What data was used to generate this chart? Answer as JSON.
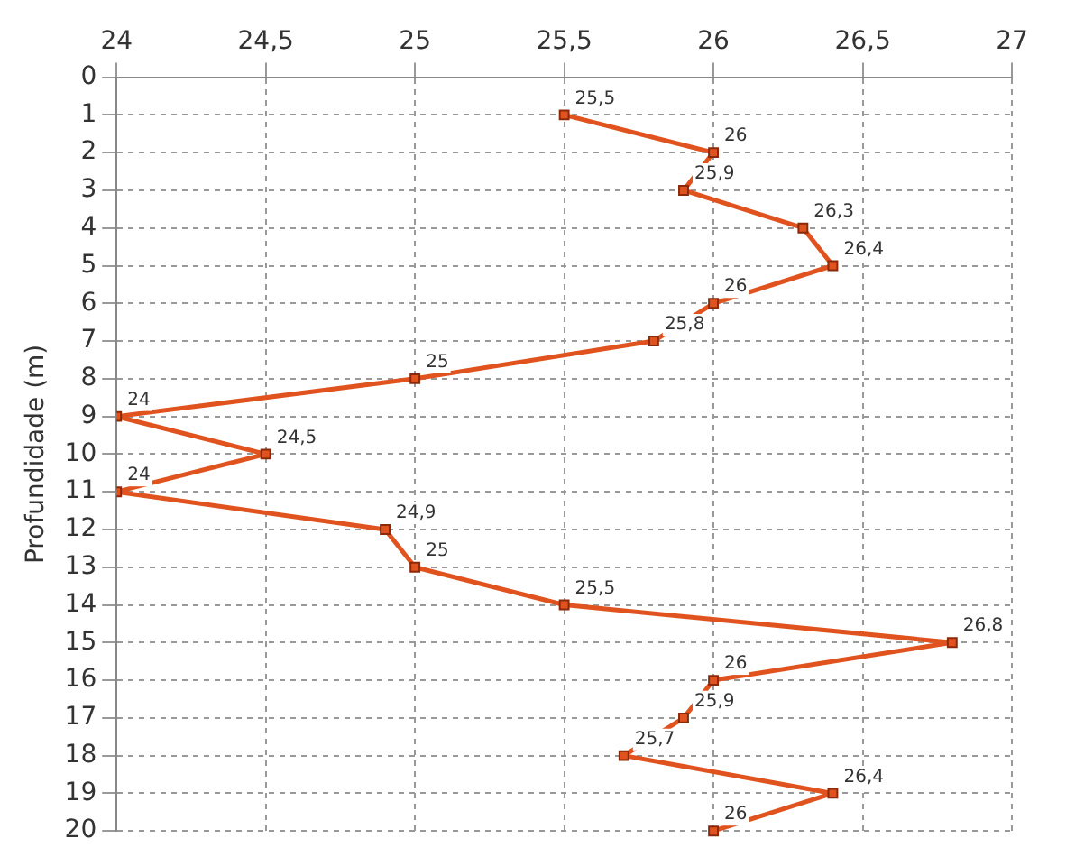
{
  "chart_data": {
    "type": "line",
    "orientation": "horizontal",
    "ylabel": "Profundidade (m)",
    "categories": [
      "0",
      "1",
      "2",
      "3",
      "4",
      "5",
      "6",
      "7",
      "8",
      "9",
      "10",
      "11",
      "12",
      "13",
      "14",
      "15",
      "16",
      "17",
      "18",
      "19",
      "20"
    ],
    "series": [
      {
        "color": "#e0531f",
        "values": [
          null,
          25.5,
          26,
          25.9,
          26.3,
          26.4,
          26,
          25.8,
          25,
          24,
          24.5,
          24,
          24.9,
          25,
          25.5,
          26.8,
          26,
          25.9,
          25.7,
          26.4,
          26
        ],
        "value_labels": [
          null,
          "25,5",
          "26",
          "25,9",
          "26,3",
          "26,4",
          "26",
          "25,8",
          "25",
          "24",
          "24,5",
          "24",
          "24,9",
          "25",
          "25,5",
          "26,8",
          "26",
          "25,9",
          "25,7",
          "26,4",
          "26"
        ]
      }
    ],
    "xlim": [
      24,
      27
    ],
    "xticks": [
      24,
      {
        "value": 24.5,
        "label": "24,5"
      },
      25,
      {
        "value": 25.5,
        "label": "25,5"
      },
      26,
      {
        "value": 26.5,
        "label": "26,5"
      },
      27
    ],
    "grid": true,
    "legend": false,
    "marker": "square",
    "line_style": "solid"
  }
}
